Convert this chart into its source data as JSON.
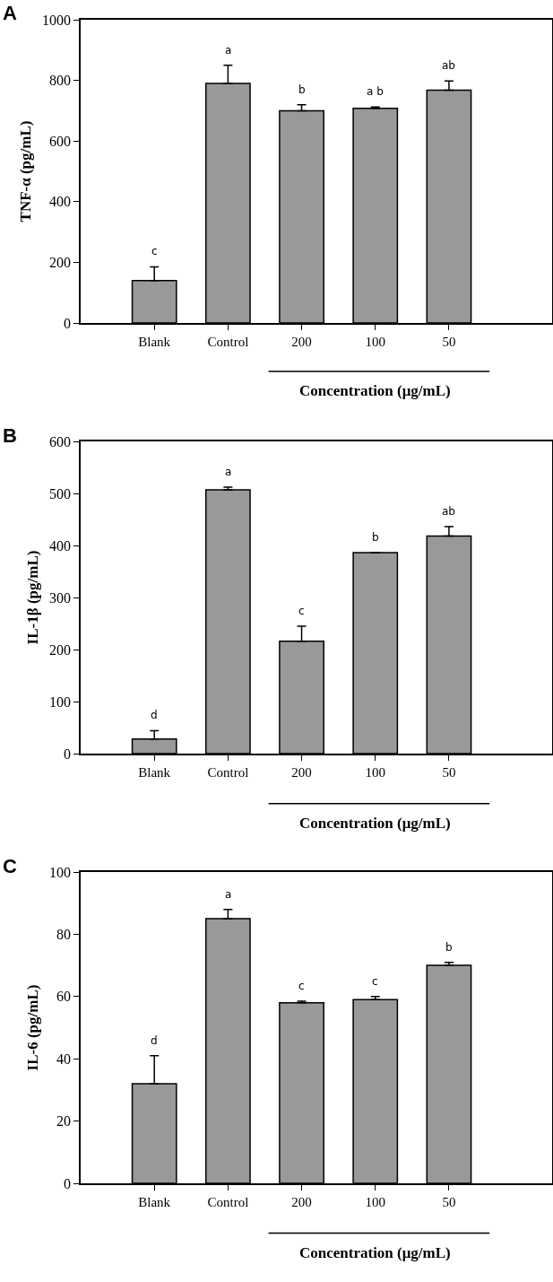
{
  "chart_data": [
    {
      "type": "bar",
      "title": "A",
      "ylabel": "TNF-α (pg/mL)",
      "xlabel": "Concentration (μg/mL)",
      "categories": [
        "Blank",
        "Control",
        "200",
        "100",
        "50"
      ],
      "values": [
        140,
        790,
        700,
        708,
        768
      ],
      "errors": [
        [
          140,
          185
        ],
        [
          790,
          850
        ],
        [
          700,
          720
        ],
        [
          708,
          712
        ],
        [
          768,
          798
        ]
      ],
      "color": "#999999",
      "ylim": [
        0,
        1000
      ],
      "yticks": [
        0,
        200,
        400,
        600,
        800,
        1000
      ],
      "annotations": [
        {
          "text": "c",
          "x": "Blank",
          "y": 185
        },
        {
          "text": "a",
          "x": "Control",
          "y": 850
        },
        {
          "text": "b",
          "x": "200",
          "y": 720
        },
        {
          "text": "a b",
          "x": "100",
          "y": 712
        },
        {
          "text": "ab",
          "x": "50",
          "y": 798
        }
      ]
    },
    {
      "type": "bar",
      "title": "B",
      "ylabel": "IL-1β (pg/mL)",
      "xlabel": "Concentration (μg/mL)",
      "categories": [
        "Blank",
        "Control",
        "200",
        "100",
        "50"
      ],
      "values": [
        28,
        507,
        216,
        386,
        418
      ],
      "errors": [
        [
          28,
          44
        ],
        [
          507,
          512
        ],
        [
          216,
          245
        ],
        null,
        [
          418,
          436
        ]
      ],
      "color": "#999999",
      "ylim": [
        0,
        600
      ],
      "yticks": [
        0,
        100,
        200,
        300,
        400,
        500,
        600
      ],
      "annotations": [
        {
          "text": "d",
          "x": "Blank",
          "y": 44
        },
        {
          "text": "a",
          "x": "Control",
          "y": 512
        },
        {
          "text": "c",
          "x": "200",
          "y": 245
        },
        {
          "text": "b",
          "x": "100",
          "y": 386
        },
        {
          "text": "ab",
          "x": "50",
          "y": 436
        }
      ]
    },
    {
      "type": "bar",
      "title": "C",
      "ylabel": "IL-6 (pg/mL)",
      "xlabel": "Concentration (μg/mL)",
      "categories": [
        "Blank",
        "Control",
        "200",
        "100",
        "50"
      ],
      "values": [
        32,
        85,
        58,
        59,
        70
      ],
      "errors": [
        [
          32,
          41
        ],
        [
          85,
          88
        ],
        [
          58,
          58.5
        ],
        [
          59,
          60
        ],
        [
          70,
          71
        ]
      ],
      "color": "#999999",
      "ylim": [
        0,
        100
      ],
      "yticks": [
        0,
        20,
        40,
        60,
        80,
        100
      ],
      "annotations": [
        {
          "text": "d",
          "x": "Blank",
          "y": 41
        },
        {
          "text": "a",
          "x": "Control",
          "y": 88
        },
        {
          "text": "c",
          "x": "200",
          "y": 58.5
        },
        {
          "text": "c",
          "x": "100",
          "y": 60
        },
        {
          "text": "b",
          "x": "50",
          "y": 71
        }
      ]
    }
  ]
}
